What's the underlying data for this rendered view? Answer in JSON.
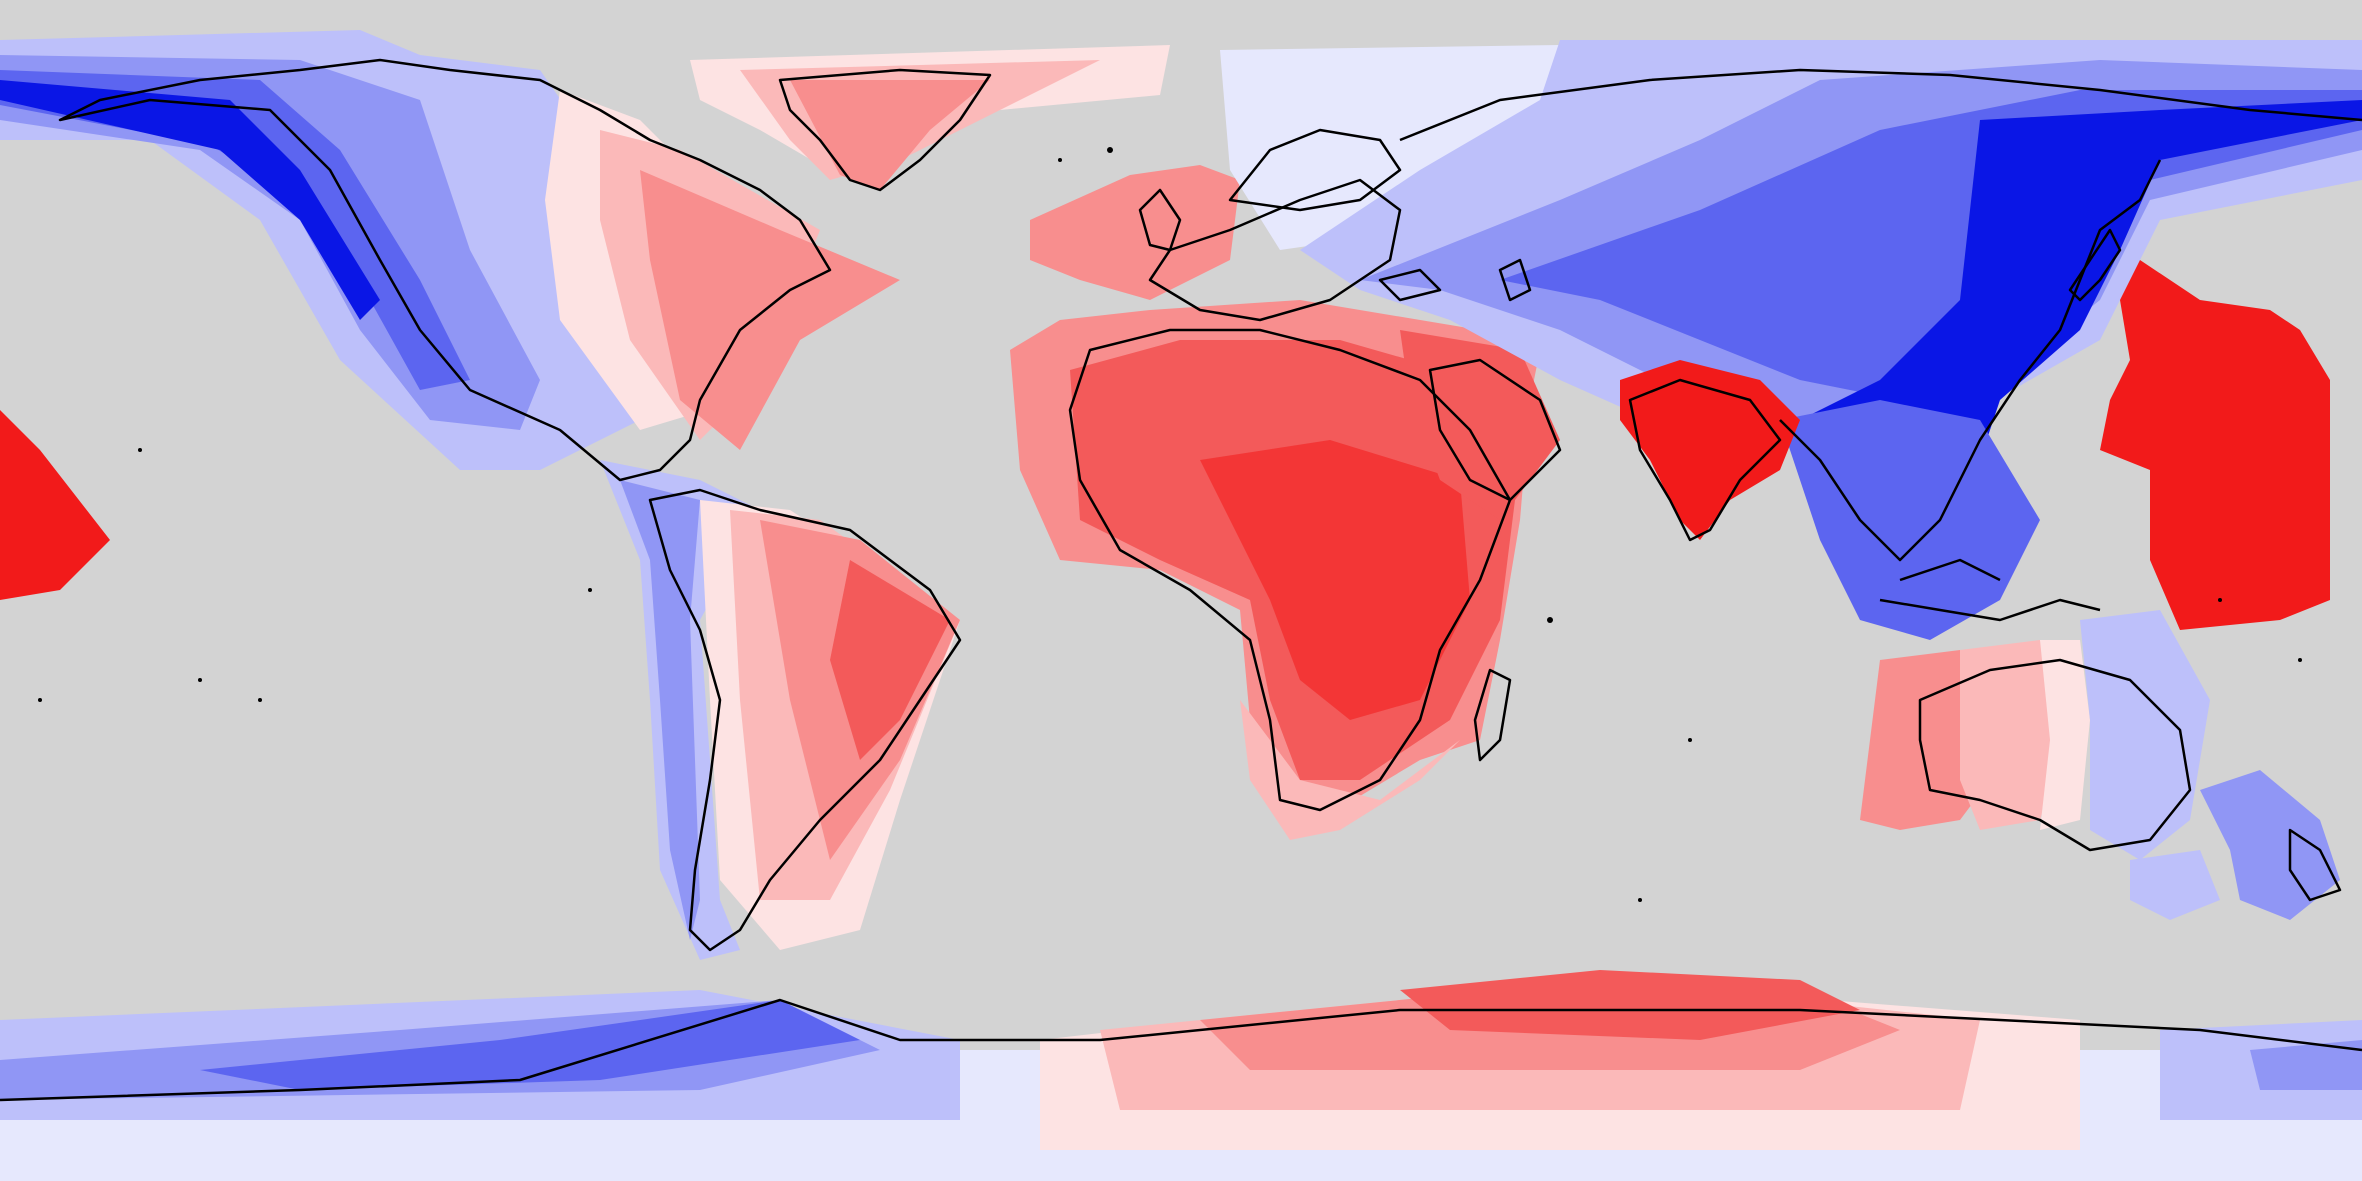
{
  "map": {
    "projection": "equirectangular",
    "ocean_color": "#d3d3d3",
    "coastline_color": "#000000",
    "scale_colors": {
      "blue_4": "#0a16e6",
      "blue_3": "#5c65f0",
      "blue_2": "#9096f5",
      "blue_1": "#bdc0fa",
      "blue_0": "#e6e8fd",
      "red_0": "#fde3e3",
      "red_1": "#fbb9b9",
      "red_2": "#f88e8e",
      "red_3": "#f35a5a",
      "red_4": "#f21a1a"
    }
  }
}
